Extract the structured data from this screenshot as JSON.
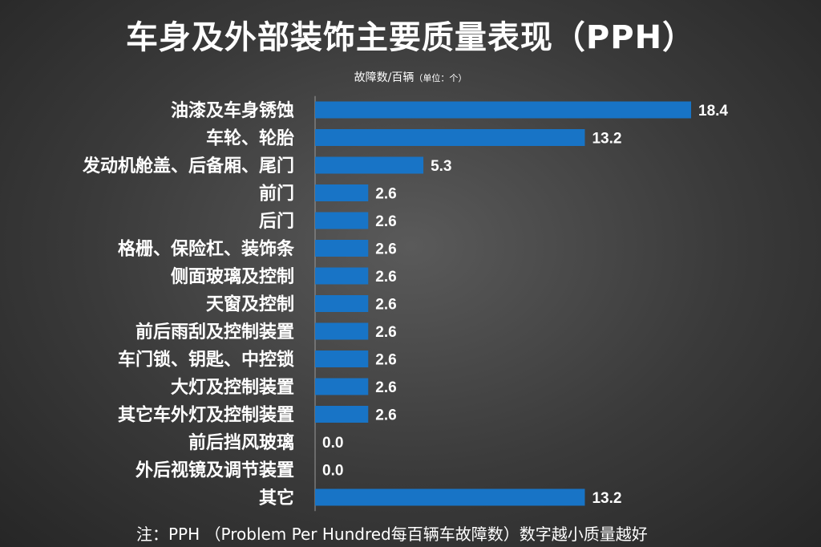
{
  "chart_data": {
    "type": "bar",
    "orientation": "horizontal",
    "title": "车身及外部装饰主要质量表现（PPH）",
    "ylabel": "故障数/百辆",
    "unit_note": "（单位：个）",
    "categories": [
      "油漆及车身锈蚀",
      "车轮、轮胎",
      "发动机舱盖、后备厢、尾门",
      "前门",
      "后门",
      "格栅、保险杠、装饰条",
      "侧面玻璃及控制",
      "天窗及控制",
      "前后雨刮及控制装置",
      "车门锁、钥匙、中控锁",
      "大灯及控制装置",
      "其它车外灯及控制装置",
      "前后挡风玻璃",
      "外后视镜及调节装置",
      "其它"
    ],
    "values": [
      18.4,
      13.2,
      5.3,
      2.6,
      2.6,
      2.6,
      2.6,
      2.6,
      2.6,
      2.6,
      2.6,
      2.6,
      0.0,
      0.0,
      13.2
    ],
    "value_labels": [
      "18.4",
      "13.2",
      "5.3",
      "2.6",
      "2.6",
      "2.6",
      "2.6",
      "2.6",
      "2.6",
      "2.6",
      "2.6",
      "2.6",
      "0.0",
      "0.0",
      "13.2"
    ],
    "xlim": [
      0,
      18.4
    ],
    "bar_color": "#1874c6",
    "grid": false
  },
  "note": "注：PPH （Problem Per Hundred每百辆车故障数）数字越小质量越好"
}
